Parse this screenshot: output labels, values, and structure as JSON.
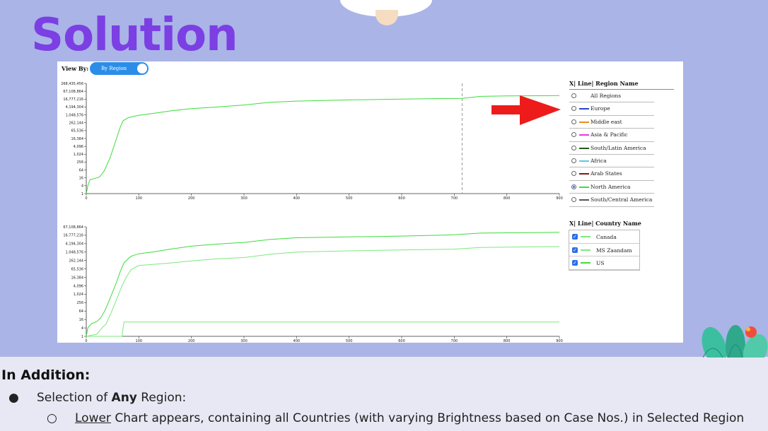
{
  "slide": {
    "title": "Solution"
  },
  "controls": {
    "view_by_label": "View By:",
    "toggle_label": "By Region"
  },
  "upper_legend": {
    "title": "X| Line| Region Name",
    "items": [
      {
        "label": "All Regions",
        "color": "",
        "selected": false
      },
      {
        "label": "Europe",
        "color": "#2a3fd6",
        "selected": false
      },
      {
        "label": "Middle east",
        "color": "#f08a1c",
        "selected": false
      },
      {
        "label": "Asia & Pacific",
        "color": "#e33ce3",
        "selected": false
      },
      {
        "label": "South/Latin America",
        "color": "#1f5e14",
        "selected": false
      },
      {
        "label": "Africa",
        "color": "#5bc7e8",
        "selected": false
      },
      {
        "label": "Arab States",
        "color": "#7a1c1c",
        "selected": false
      },
      {
        "label": "North America",
        "color": "#3ddc3d",
        "selected": true
      },
      {
        "label": "South/Central America",
        "color": "#555555",
        "selected": false
      }
    ]
  },
  "lower_legend": {
    "title": "X| Line| Country Name",
    "items": [
      {
        "label": "Canada",
        "color": "#7ee87e",
        "checked": true
      },
      {
        "label": "MS Zaandam",
        "color": "#7ee87e",
        "checked": true
      },
      {
        "label": "US",
        "color": "#3ddc3d",
        "checked": true
      }
    ]
  },
  "chart_data": [
    {
      "type": "line",
      "scale": "log2",
      "x_ticks": [
        "0",
        "100",
        "200",
        "300",
        "400",
        "500",
        "600",
        "700",
        "800",
        "900"
      ],
      "y_ticks": [
        "1",
        "4",
        "16",
        "64",
        "256",
        "1,024",
        "4,096",
        "16,384",
        "65,536",
        "262,144",
        "1,048,576",
        "4,194,304",
        "16,777,216",
        "67,108,864",
        "268,435,456"
      ],
      "xlim": [
        0,
        900
      ],
      "ylim_log2": [
        0,
        28
      ],
      "marker_x": 715,
      "series": [
        {
          "name": "North America",
          "color": "#3ddc3d",
          "points": [
            [
              0,
              0
            ],
            [
              3,
              2
            ],
            [
              7,
              3.5
            ],
            [
              15,
              3.8
            ],
            [
              25,
              4.2
            ],
            [
              30,
              5
            ],
            [
              35,
              6
            ],
            [
              40,
              7.5
            ],
            [
              45,
              9
            ],
            [
              50,
              11
            ],
            [
              55,
              13
            ],
            [
              60,
              15
            ],
            [
              65,
              17
            ],
            [
              70,
              18.5
            ],
            [
              80,
              19.3
            ],
            [
              100,
              19.9
            ],
            [
              130,
              20.4
            ],
            [
              160,
              21
            ],
            [
              200,
              21.6
            ],
            [
              250,
              22
            ],
            [
              300,
              22.5
            ],
            [
              350,
              23.2
            ],
            [
              400,
              23.5
            ],
            [
              500,
              23.8
            ],
            [
              600,
              24
            ],
            [
              715,
              24.2
            ],
            [
              750,
              24.7
            ],
            [
              800,
              24.8
            ],
            [
              900,
              24.9
            ]
          ]
        }
      ]
    },
    {
      "type": "line",
      "scale": "log2",
      "x_ticks": [
        "0",
        "100",
        "200",
        "300",
        "400",
        "500",
        "600",
        "700",
        "800",
        "900"
      ],
      "y_ticks": [
        "1",
        "4",
        "16",
        "64",
        "256",
        "1,024",
        "4,096",
        "16,384",
        "65,536",
        "262,144",
        "1,048,576",
        "4,194,304",
        "16,777,216",
        "67,108,864"
      ],
      "xlim": [
        0,
        900
      ],
      "ylim_log2": [
        0,
        26
      ],
      "series": [
        {
          "name": "US",
          "color": "#3ddc3d",
          "points": [
            [
              0,
              0
            ],
            [
              3,
              2
            ],
            [
              10,
              3
            ],
            [
              20,
              3.5
            ],
            [
              28,
              4.5
            ],
            [
              35,
              6
            ],
            [
              42,
              8
            ],
            [
              50,
              10.5
            ],
            [
              58,
              13
            ],
            [
              65,
              15.5
            ],
            [
              72,
              17.5
            ],
            [
              85,
              19
            ],
            [
              100,
              19.6
            ],
            [
              130,
              20.1
            ],
            [
              160,
              20.7
            ],
            [
              200,
              21.4
            ],
            [
              250,
              21.9
            ],
            [
              300,
              22.3
            ],
            [
              350,
              23
            ],
            [
              400,
              23.4
            ],
            [
              500,
              23.6
            ],
            [
              600,
              23.8
            ],
            [
              700,
              24.1
            ],
            [
              750,
              24.5
            ],
            [
              900,
              24.7
            ]
          ]
        },
        {
          "name": "Canada",
          "color": "#7ee87e",
          "points": [
            [
              0,
              0
            ],
            [
              20,
              0.5
            ],
            [
              30,
              2
            ],
            [
              38,
              3
            ],
            [
              45,
              5
            ],
            [
              52,
              7
            ],
            [
              60,
              9.5
            ],
            [
              68,
              12
            ],
            [
              76,
              14
            ],
            [
              85,
              15.8
            ],
            [
              100,
              16.8
            ],
            [
              150,
              17.3
            ],
            [
              200,
              17.9
            ],
            [
              250,
              18.4
            ],
            [
              300,
              18.7
            ],
            [
              350,
              19.5
            ],
            [
              400,
              20
            ],
            [
              500,
              20.3
            ],
            [
              600,
              20.5
            ],
            [
              700,
              20.7
            ],
            [
              750,
              21.1
            ],
            [
              900,
              21.3
            ]
          ]
        },
        {
          "name": "MS Zaandam",
          "color": "#7ee87e",
          "points": [
            [
              0,
              0
            ],
            [
              68,
              0
            ],
            [
              70,
              2
            ],
            [
              72,
              3.4
            ],
            [
              900,
              3.4
            ]
          ]
        }
      ]
    }
  ],
  "notes": {
    "heading": "In Addition:",
    "item1_prefix": "Selection of ",
    "item1_bold": "Any",
    "item1_suffix": " Region:",
    "item2_underlined": "Lower",
    "item2_rest": " Chart appears, containing all Countries (with varying Brightness based on Case Nos.) in Selected Region",
    "bullet1": "●",
    "bullet2": "○"
  }
}
